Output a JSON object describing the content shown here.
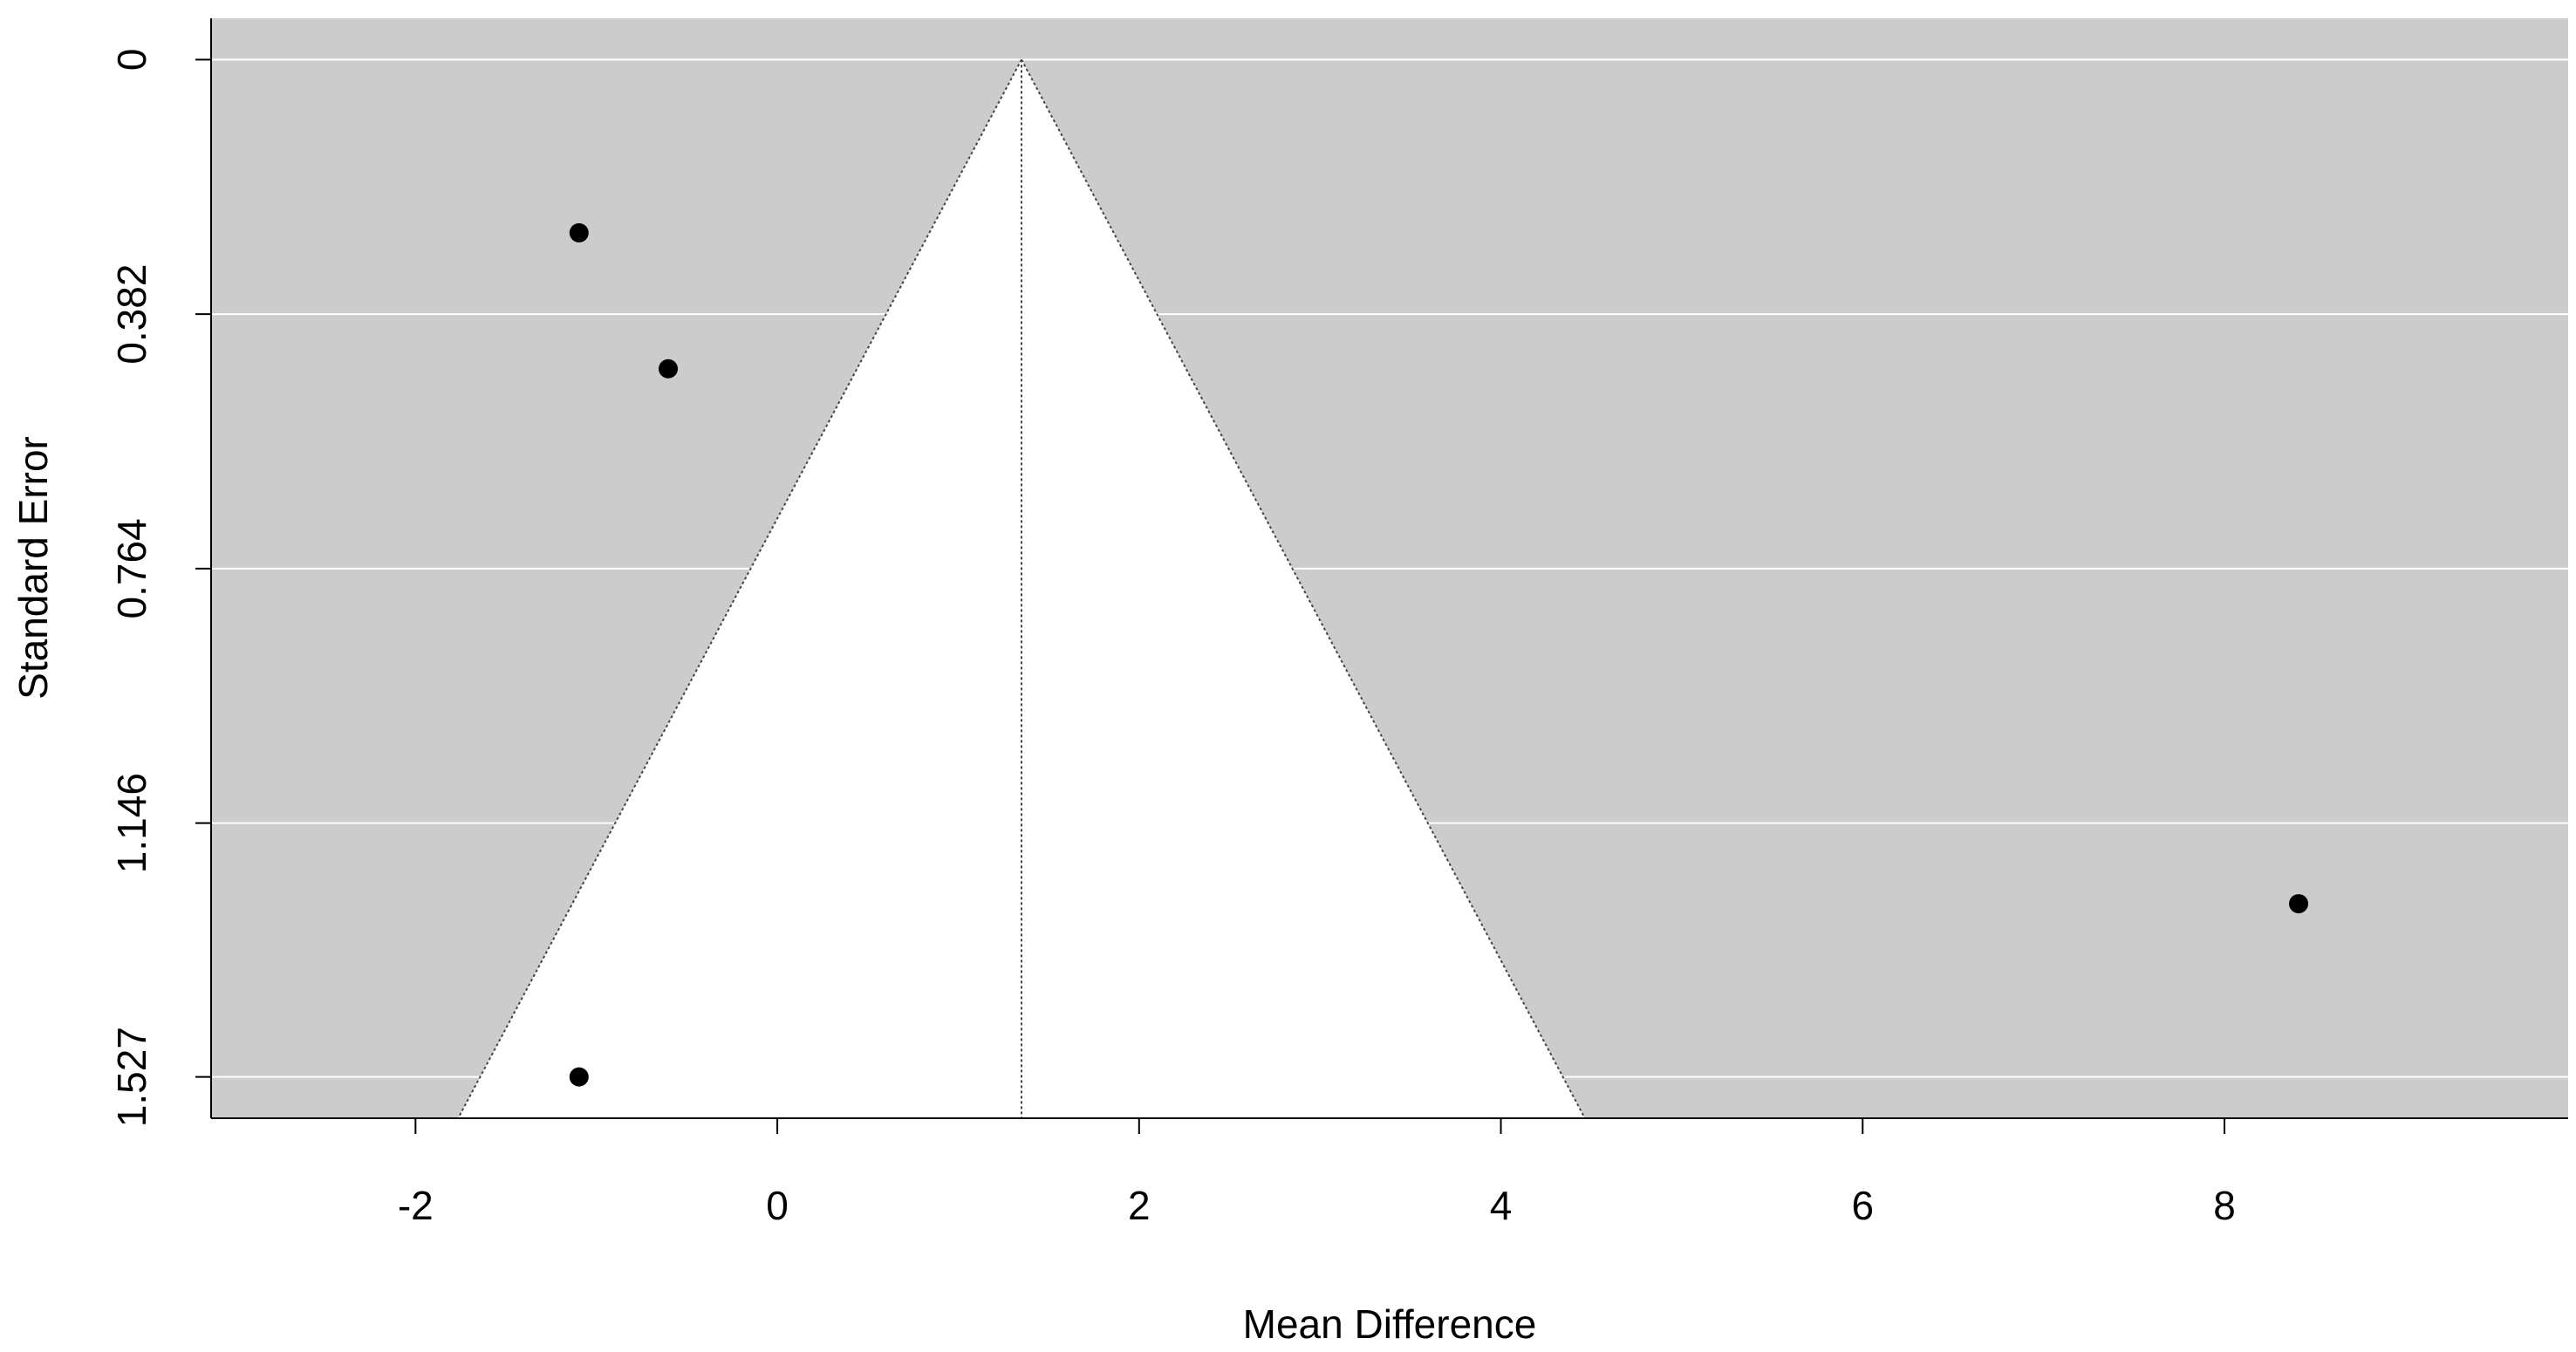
{
  "chart_data": {
    "type": "funnel",
    "x_label": "Mean Difference",
    "y_label": "Standard Error",
    "x": [
      -1.096,
      -0.603,
      -1.096,
      8.41
    ],
    "values": [
      0.26,
      0.464,
      1.527,
      1.267
    ],
    "color": "#000000",
    "reference_line": 1.35,
    "funnel_z": 1.96,
    "xlim": [
      -3.13,
      9.9
    ],
    "xticks": [
      -2,
      0,
      2,
      4,
      6,
      8
    ],
    "ylim": [
      1.589,
      -0.062
    ],
    "yticks": [
      0,
      0.382,
      0.764,
      1.146,
      1.527
    ],
    "grid": true
  }
}
